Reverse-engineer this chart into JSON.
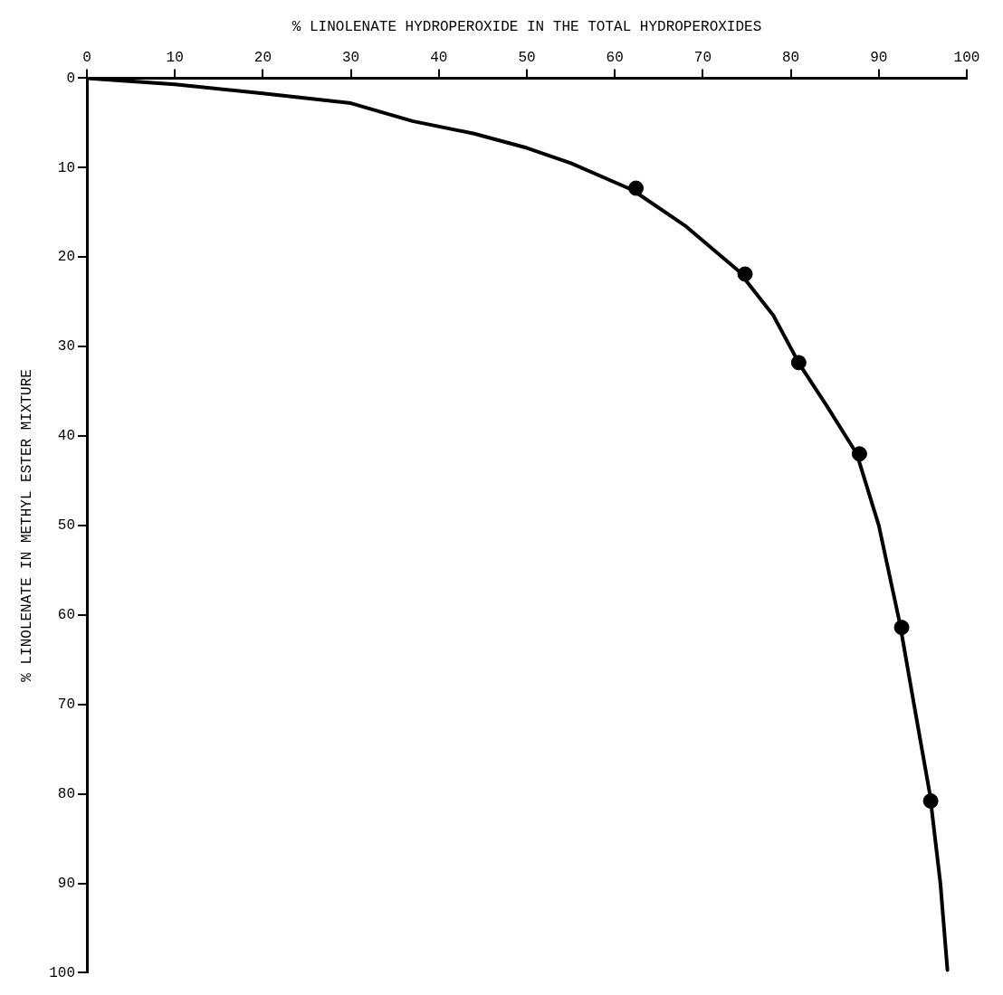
{
  "chart_data": {
    "type": "scatter",
    "xlabel": "% LINOLENATE HYDROPEROXIDE IN THE TOTAL HYDROPEROXIDES",
    "ylabel": "% LINOLENATE IN METHYL ESTER MIXTURE",
    "xlim": [
      0,
      100
    ],
    "xticks": [
      0,
      10,
      20,
      30,
      40,
      50,
      60,
      70,
      80,
      90,
      100
    ],
    "ylim": [
      100,
      0
    ],
    "yticks": [
      0,
      10,
      20,
      30,
      40,
      50,
      60,
      70,
      80,
      90,
      100
    ],
    "grid": false,
    "legend": false,
    "series": [
      {
        "type": "scatter",
        "color": "#000000",
        "marker": "circle",
        "x": [
          62.4,
          74.8,
          80.9,
          87.8,
          92.6,
          95.9
        ],
        "values": [
          12.3,
          21.9,
          31.8,
          42,
          61.4,
          80.8
        ]
      },
      {
        "type": "line",
        "color": "#000000",
        "marker": "none",
        "line_style": "solid",
        "x": [
          0,
          10,
          20,
          30,
          37,
          44,
          50,
          55,
          62,
          68,
          74,
          78,
          81,
          84,
          87.5,
          90,
          92.4,
          94,
          95.8,
          97,
          97.8
        ],
        "values": [
          0,
          0.7,
          1.7,
          2.8,
          4.8,
          6.2,
          7.8,
          9.5,
          12.5,
          16.5,
          21.5,
          26.5,
          32,
          36.5,
          42,
          50,
          61,
          70,
          80,
          90,
          99.7
        ]
      }
    ]
  }
}
